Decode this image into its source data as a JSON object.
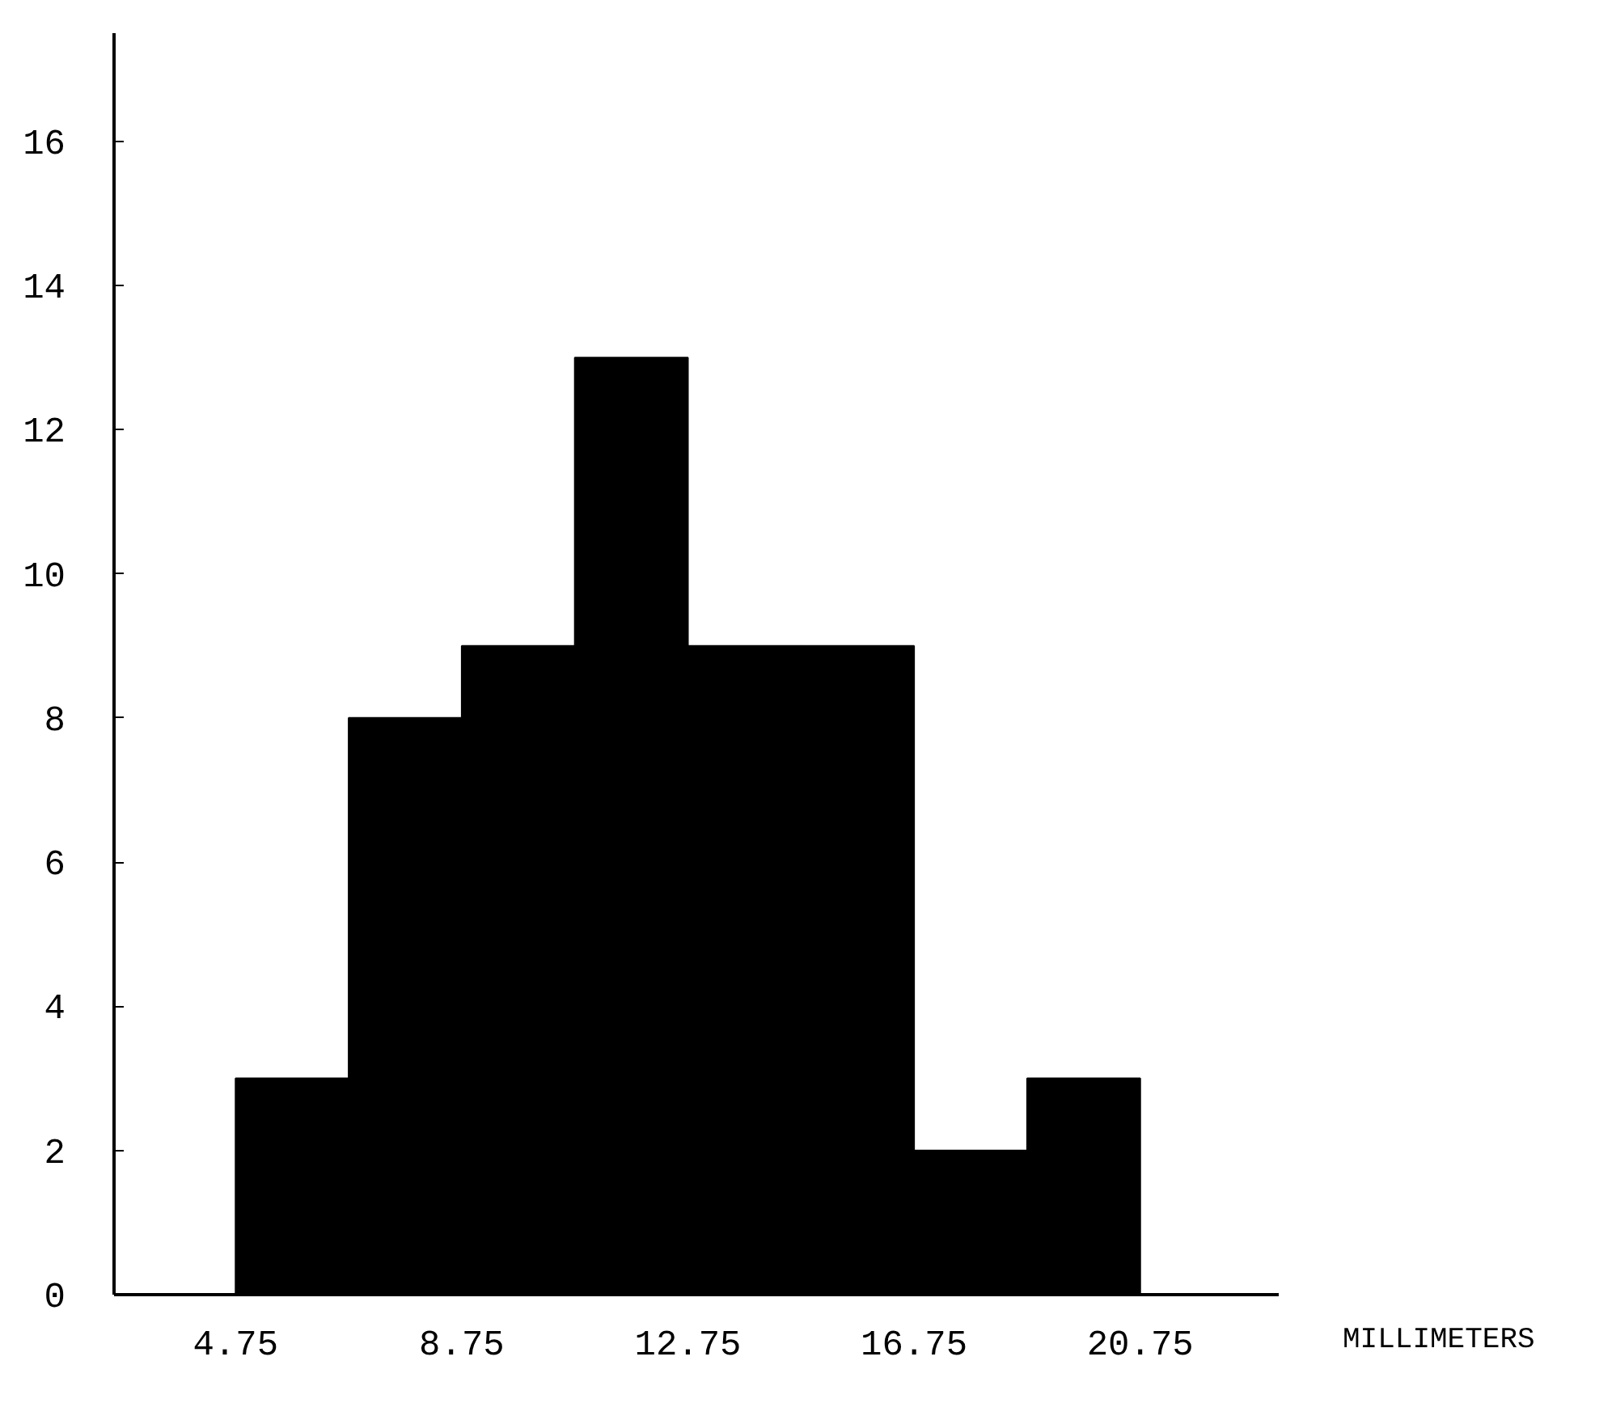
{
  "chart_data": {
    "type": "histogram",
    "xlabel": "MILLIMETERS",
    "bins": [
      4.75,
      6.75,
      8.75,
      10.75,
      12.75,
      14.75,
      16.75,
      18.75,
      20.75
    ],
    "values": [
      3,
      8,
      9,
      13,
      9,
      9,
      2,
      3
    ],
    "color": "#000000",
    "xlim": [
      2.6,
      23.2
    ],
    "ylim": [
      0,
      17.5
    ],
    "xticks": [
      4.75,
      8.75,
      12.75,
      16.75,
      20.75
    ],
    "yticks": [
      0,
      2,
      4,
      6,
      8,
      10,
      12,
      14,
      16
    ],
    "grid": false
  }
}
